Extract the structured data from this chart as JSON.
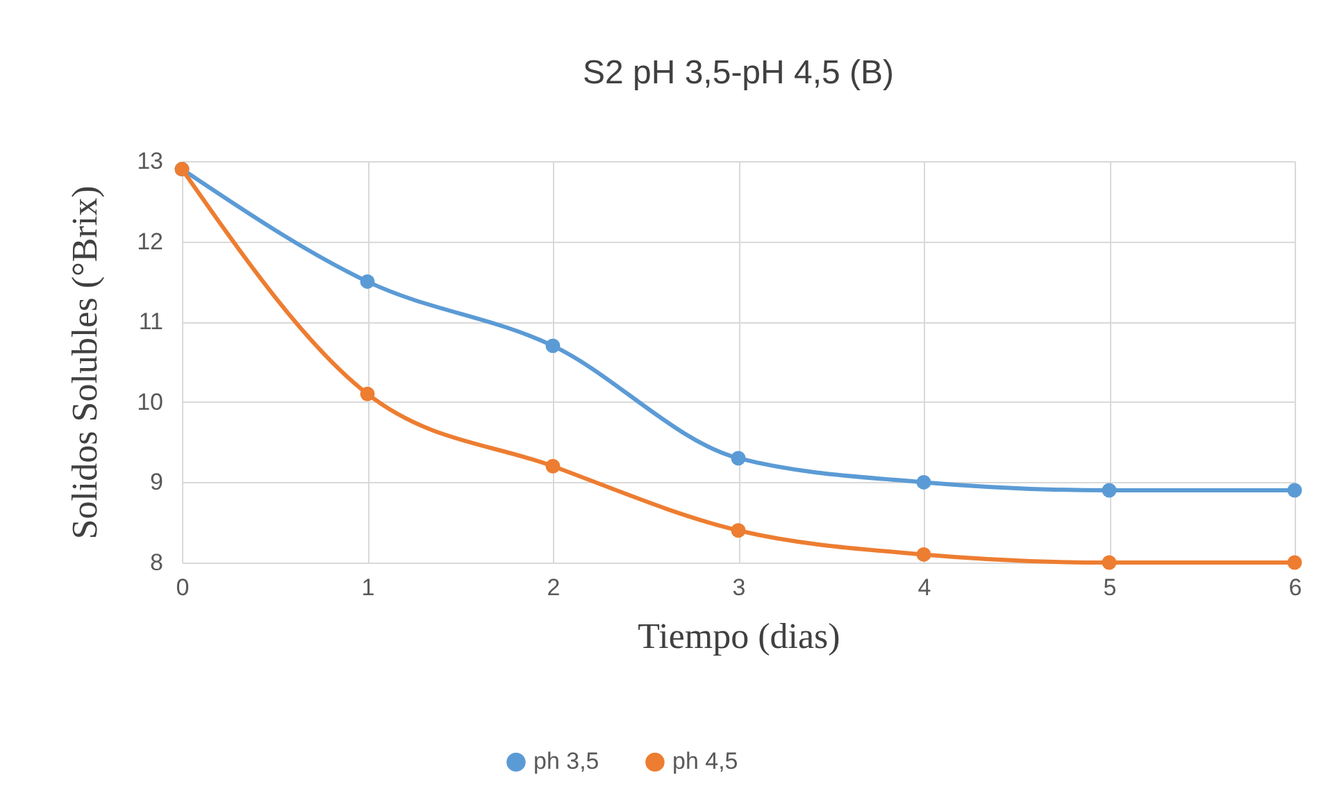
{
  "chart_data": {
    "type": "line",
    "title": "S2 pH 3,5-pH 4,5 (B)",
    "xlabel": "Tiempo (dias)",
    "ylabel": "Solidos Solubles (°Brix)",
    "x": [
      0,
      1,
      2,
      3,
      4,
      5,
      6
    ],
    "series": [
      {
        "name": "ph 3,5",
        "color": "#5b9bd5",
        "values": [
          12.9,
          11.5,
          10.7,
          9.3,
          9.0,
          8.9,
          8.9
        ]
      },
      {
        "name": "ph 4,5",
        "color": "#ed7d31",
        "values": [
          12.9,
          10.1,
          9.2,
          8.4,
          8.1,
          8.0,
          8.0
        ]
      }
    ],
    "xlim": [
      0,
      6
    ],
    "xticks": [
      0,
      1,
      2,
      3,
      4,
      5,
      6
    ],
    "ylim": [
      8,
      13
    ],
    "yticks": [
      8,
      9,
      10,
      11,
      12,
      13
    ],
    "grid": true,
    "legend": "bottom",
    "marker": "circle",
    "line_style": "solid"
  }
}
